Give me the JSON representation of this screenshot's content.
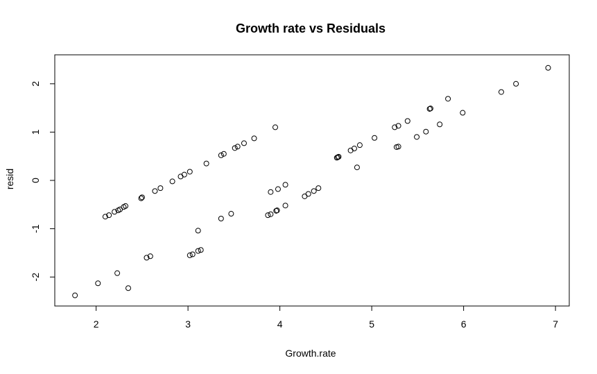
{
  "chart_data": {
    "type": "scatter",
    "title": "Growth rate vs Residuals",
    "xlabel": "Growth.rate",
    "ylabel": "resid",
    "xlim": [
      1.55,
      7.15
    ],
    "ylim": [
      -2.6,
      2.6
    ],
    "xticks": [
      2,
      3,
      4,
      5,
      6,
      7
    ],
    "yticks": [
      -2,
      -1,
      0,
      1,
      2
    ],
    "grid": false,
    "legend": false,
    "points": [
      {
        "x": 1.77,
        "y": -2.38
      },
      {
        "x": 2.02,
        "y": -2.13
      },
      {
        "x": 2.23,
        "y": -1.92
      },
      {
        "x": 2.35,
        "y": -2.23
      },
      {
        "x": 2.1,
        "y": -0.75
      },
      {
        "x": 2.14,
        "y": -0.72
      },
      {
        "x": 2.2,
        "y": -0.65
      },
      {
        "x": 2.24,
        "y": -0.62
      },
      {
        "x": 2.26,
        "y": -0.6
      },
      {
        "x": 2.3,
        "y": -0.55
      },
      {
        "x": 2.32,
        "y": -0.53
      },
      {
        "x": 2.49,
        "y": -0.37
      },
      {
        "x": 2.5,
        "y": -0.35
      },
      {
        "x": 2.55,
        "y": -1.6
      },
      {
        "x": 2.59,
        "y": -1.57
      },
      {
        "x": 2.64,
        "y": -0.22
      },
      {
        "x": 2.7,
        "y": -0.16
      },
      {
        "x": 2.83,
        "y": -0.02
      },
      {
        "x": 2.92,
        "y": 0.08
      },
      {
        "x": 2.96,
        "y": 0.12
      },
      {
        "x": 3.02,
        "y": 0.18
      },
      {
        "x": 3.02,
        "y": -1.55
      },
      {
        "x": 3.05,
        "y": -1.53
      },
      {
        "x": 3.11,
        "y": -1.04
      },
      {
        "x": 3.11,
        "y": -1.46
      },
      {
        "x": 3.14,
        "y": -1.44
      },
      {
        "x": 3.2,
        "y": 0.35
      },
      {
        "x": 3.36,
        "y": 0.52
      },
      {
        "x": 3.39,
        "y": 0.55
      },
      {
        "x": 3.36,
        "y": -0.79
      },
      {
        "x": 3.47,
        "y": -0.69
      },
      {
        "x": 3.51,
        "y": 0.67
      },
      {
        "x": 3.54,
        "y": 0.7
      },
      {
        "x": 3.61,
        "y": 0.77
      },
      {
        "x": 3.72,
        "y": 0.87
      },
      {
        "x": 3.87,
        "y": -0.72
      },
      {
        "x": 3.9,
        "y": -0.7
      },
      {
        "x": 3.9,
        "y": -0.24
      },
      {
        "x": 3.95,
        "y": 1.1
      },
      {
        "x": 3.96,
        "y": -0.63
      },
      {
        "x": 3.97,
        "y": -0.62
      },
      {
        "x": 3.98,
        "y": -0.18
      },
      {
        "x": 4.06,
        "y": -0.52
      },
      {
        "x": 4.06,
        "y": -0.09
      },
      {
        "x": 4.27,
        "y": -0.33
      },
      {
        "x": 4.31,
        "y": -0.28
      },
      {
        "x": 4.37,
        "y": -0.22
      },
      {
        "x": 4.42,
        "y": -0.16
      },
      {
        "x": 4.62,
        "y": 0.47
      },
      {
        "x": 4.63,
        "y": 0.48
      },
      {
        "x": 4.64,
        "y": 0.49
      },
      {
        "x": 4.77,
        "y": 0.62
      },
      {
        "x": 4.81,
        "y": 0.66
      },
      {
        "x": 4.84,
        "y": 0.27
      },
      {
        "x": 4.87,
        "y": 0.73
      },
      {
        "x": 5.03,
        "y": 0.88
      },
      {
        "x": 5.25,
        "y": 1.1
      },
      {
        "x": 5.29,
        "y": 1.13
      },
      {
        "x": 5.27,
        "y": 0.69
      },
      {
        "x": 5.29,
        "y": 0.7
      },
      {
        "x": 5.39,
        "y": 1.23
      },
      {
        "x": 5.49,
        "y": 0.9
      },
      {
        "x": 5.59,
        "y": 1.01
      },
      {
        "x": 5.63,
        "y": 1.48
      },
      {
        "x": 5.64,
        "y": 1.49
      },
      {
        "x": 5.74,
        "y": 1.16
      },
      {
        "x": 5.83,
        "y": 1.69
      },
      {
        "x": 5.99,
        "y": 1.4
      },
      {
        "x": 6.41,
        "y": 1.83
      },
      {
        "x": 6.57,
        "y": 2.0
      },
      {
        "x": 6.92,
        "y": 2.33
      }
    ]
  }
}
